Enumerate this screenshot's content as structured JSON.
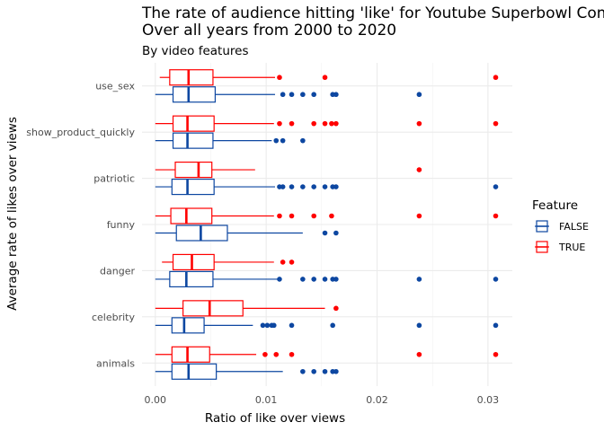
{
  "chart_data": {
    "type": "boxplot",
    "title_line1": "The rate of audience hitting 'like' for Youtube Superbowl Commercials",
    "title_line2": "Over all years from 2000 to 2020",
    "subtitle": "By video features",
    "xlabel": "Ratio of like over views",
    "ylabel": "Average rate of likes over views",
    "xlim": [
      -0.0012,
      0.0322
    ],
    "x_ticks": [
      0,
      0.01,
      0.02,
      0.03
    ],
    "x_tick_labels": [
      "0.00",
      "0.01",
      "0.02",
      "0.03"
    ],
    "grid": true,
    "legend_position": "right",
    "legend": {
      "title": "Feature",
      "items": [
        {
          "label": "FALSE",
          "color": "#0d47a1"
        },
        {
          "label": "TRUE",
          "color": "#ff0000"
        }
      ]
    },
    "categories": [
      "animals",
      "celebrity",
      "danger",
      "funny",
      "patriotic",
      "show_product_quickly",
      "use_sex"
    ],
    "series": [
      {
        "name": "FALSE",
        "color": "#0d47a1",
        "boxes": [
          {
            "min": 0.0,
            "q1": 0.0015,
            "median": 0.003,
            "q3": 0.0055,
            "max": 0.0115,
            "outliers": [
              0.0133,
              0.0143,
              0.0153,
              0.016,
              0.0163
            ]
          },
          {
            "min": 0.0,
            "q1": 0.0015,
            "median": 0.0026,
            "q3": 0.0044,
            "max": 0.0088,
            "outliers": [
              0.0097,
              0.0101,
              0.0105,
              0.0107,
              0.0123,
              0.016,
              0.0238,
              0.0307
            ]
          },
          {
            "min": 0.0,
            "q1": 0.0013,
            "median": 0.0028,
            "q3": 0.0052,
            "max": 0.011,
            "outliers": [
              0.0112,
              0.0133,
              0.0143,
              0.0153,
              0.016,
              0.0163,
              0.0238,
              0.0307
            ]
          },
          {
            "min": 0.0,
            "q1": 0.0019,
            "median": 0.0041,
            "q3": 0.0065,
            "max": 0.0133,
            "outliers": [
              0.0153,
              0.0163
            ]
          },
          {
            "min": 0.0,
            "q1": 0.0015,
            "median": 0.0029,
            "q3": 0.0053,
            "max": 0.0108,
            "outliers": [
              0.0112,
              0.0115,
              0.0123,
              0.0133,
              0.0143,
              0.0153,
              0.016,
              0.0163,
              0.0307
            ]
          },
          {
            "min": 0.0,
            "q1": 0.0016,
            "median": 0.0029,
            "q3": 0.0052,
            "max": 0.0105,
            "outliers": [
              0.0109,
              0.0115,
              0.0133
            ]
          },
          {
            "min": 0.0,
            "q1": 0.0016,
            "median": 0.003,
            "q3": 0.0054,
            "max": 0.0108,
            "outliers": [
              0.0115,
              0.0123,
              0.0133,
              0.0143,
              0.016,
              0.0163,
              0.0238
            ]
          }
        ]
      },
      {
        "name": "TRUE",
        "color": "#ff0000",
        "boxes": [
          {
            "min": 0.0,
            "q1": 0.0015,
            "median": 0.0029,
            "q3": 0.0049,
            "max": 0.0091,
            "outliers": [
              0.0099,
              0.0109,
              0.0123,
              0.0238,
              0.0307
            ]
          },
          {
            "min": 0.0,
            "q1": 0.0025,
            "median": 0.0049,
            "q3": 0.0079,
            "max": 0.0153,
            "outliers": [
              0.0163
            ]
          },
          {
            "min": 0.0006,
            "q1": 0.0016,
            "median": 0.0033,
            "q3": 0.0053,
            "max": 0.0107,
            "outliers": [
              0.0115,
              0.0123
            ]
          },
          {
            "min": 0.0,
            "q1": 0.0014,
            "median": 0.0028,
            "q3": 0.0051,
            "max": 0.0107,
            "outliers": [
              0.0112,
              0.0123,
              0.0143,
              0.0159,
              0.0238,
              0.0307
            ]
          },
          {
            "min": 0.0,
            "q1": 0.0018,
            "median": 0.0039,
            "q3": 0.0051,
            "max": 0.009,
            "outliers": [
              0.0238
            ]
          },
          {
            "min": 0.0,
            "q1": 0.0016,
            "median": 0.0029,
            "q3": 0.0053,
            "max": 0.0107,
            "outliers": [
              0.0112,
              0.0123,
              0.0143,
              0.0153,
              0.0159,
              0.0163,
              0.0238,
              0.0307
            ]
          },
          {
            "min": 0.0004,
            "q1": 0.0013,
            "median": 0.003,
            "q3": 0.0052,
            "max": 0.0108,
            "outliers": [
              0.0112,
              0.0153,
              0.0307
            ]
          }
        ]
      }
    ]
  }
}
